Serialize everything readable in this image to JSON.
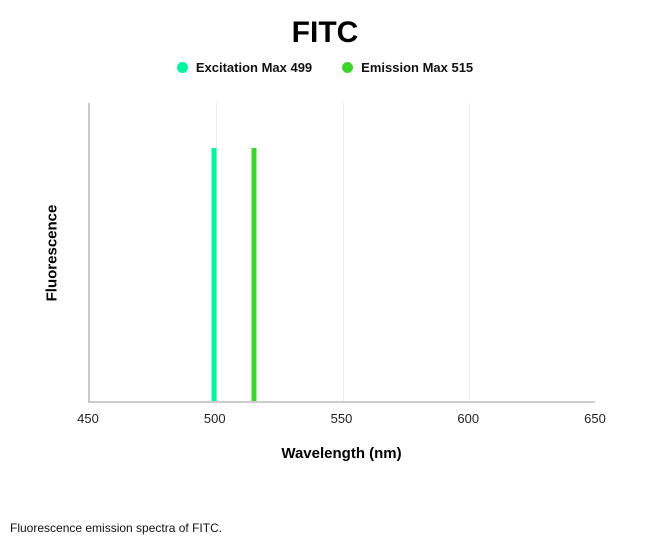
{
  "title": "FITC",
  "legend": [
    {
      "label": "Excitation Max 499",
      "color": "#00f59e"
    },
    {
      "label": "Emission Max 515",
      "color": "#3cd52b"
    }
  ],
  "axes": {
    "x_label": "Wavelength (nm)",
    "y_label": "Fluorescence",
    "x_ticks": [
      450,
      500,
      550,
      600,
      650
    ]
  },
  "caption": "Fluorescence emission spectra of FITC.",
  "chart_data": {
    "type": "line",
    "title": "FITC",
    "xlabel": "Wavelength (nm)",
    "ylabel": "Fluorescence",
    "xlim": [
      450,
      650
    ],
    "x_ticks": [
      450,
      500,
      550,
      600,
      650
    ],
    "grid": "faint vertical gridlines at interior x ticks",
    "legend_position": "top-center",
    "series": [
      {
        "name": "Excitation Max 499",
        "shape": "vertical-line",
        "x": 499,
        "color": "#00f59e",
        "height_fraction": 0.85
      },
      {
        "name": "Emission Max 515",
        "shape": "vertical-line",
        "x": 515,
        "color": "#3cd52b",
        "height_fraction": 0.85
      }
    ]
  }
}
